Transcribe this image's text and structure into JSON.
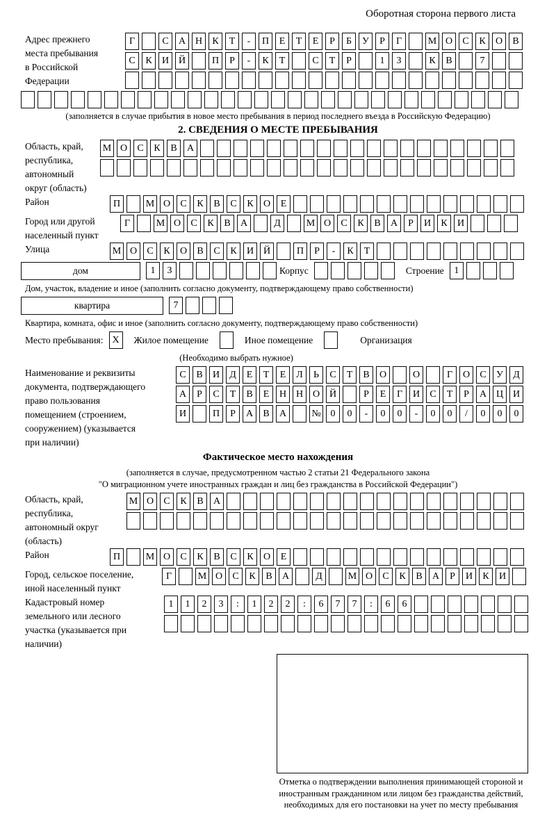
{
  "header": {
    "title": "Оборотная сторона первого листа"
  },
  "prev_address": {
    "label": "Адрес прежнего места пребывания в Российской Федерации",
    "rows": [
      {
        "chars": "Г САНКТ-ПЕТЕРБУРГ МОСКОВ",
        "len": 24
      },
      {
        "chars": "СКИЙ ПР-КТ СТР 13 КВ 7",
        "len": 24
      },
      {
        "chars": "",
        "len": 24
      },
      {
        "chars": "",
        "len": 30
      }
    ],
    "note": "(заполняется в случае прибытия в новое место пребывания в период последнего въезда в Российскую Федерацию)"
  },
  "section2": {
    "heading": "2. СВЕДЕНИЯ О МЕСТЕ ПРЕБЫВАНИЯ",
    "region": {
      "label": "Область, край, республика, автономный округ (область)",
      "rows": [
        {
          "chars": "МОСКВА",
          "len": 25
        },
        {
          "chars": "",
          "len": 25
        }
      ]
    },
    "district": {
      "label": "Район",
      "row": {
        "chars": "П МОСКВСКОЕ",
        "len": 25
      }
    },
    "city": {
      "label": "Город или другой населенный пункт",
      "row": {
        "chars": "Г МОСКВА Д МОСКВАРИКИ",
        "len": 24
      }
    },
    "street": {
      "label": "Улица",
      "row": {
        "chars": "МОСКОВСКИЙ ПР-КТ",
        "len": 25
      }
    },
    "house": {
      "box_label": "дом",
      "cells": {
        "chars": "13",
        "len": 8
      },
      "korpus_label": "Корпус",
      "korpus_cells": {
        "chars": "",
        "len": 5
      },
      "stroenie_label": "Строение",
      "stroenie_cells": {
        "chars": "1",
        "len": 4
      },
      "note": "Дом, участок, владение и иное (заполнить согласно документу, подтверждающему право собственности)"
    },
    "apartment": {
      "box_label": "квартира",
      "cells": {
        "chars": "7",
        "len": 4
      },
      "note": "Квартира, комната, офис и иное (заполнить согласно документу, подтверждающему право собственности)"
    },
    "stay_type": {
      "label": "Место пребывания:",
      "options": [
        {
          "label": "Жилое помещение",
          "box": {
            "chars": "X",
            "len": 1
          }
        },
        {
          "label": "Иное помещение",
          "box": {
            "chars": "",
            "len": 1
          }
        },
        {
          "label": "Организация",
          "box": {
            "chars": "",
            "len": 1
          }
        }
      ],
      "note": "(Необходимо выбрать нужное)"
    },
    "document": {
      "label": "Наименование и реквизиты документа, подтверждающего право пользования помещением (строением, сооружением) (указывается при наличии)",
      "rows": [
        {
          "chars": "СВИДЕТЕЛЬСТВО О ГОСУД",
          "len": 21
        },
        {
          "chars": "АРСТВЕННОЙ РЕГИСТРАЦИ",
          "len": 21
        },
        {
          "chars": "И ПРАВА №00-00-00/000",
          "len": 21
        }
      ]
    }
  },
  "actual_location": {
    "heading": "Фактическое место нахождения",
    "note_line1": "(заполняется в случае, предусмотренном частью 2 статьи 21 Федерального закона",
    "note_line2": "\"О миграционном учете иностранных граждан и лиц без гражданства в Российской Федерации\")",
    "region": {
      "label": "Область, край, республика, автономный округ (область)",
      "rows": [
        {
          "chars": "МОСКВА",
          "len": 24
        },
        {
          "chars": "",
          "len": 24
        }
      ]
    },
    "district": {
      "label": "Район",
      "row": {
        "chars": "П МОСКВСКОЕ",
        "len": 25
      }
    },
    "city": {
      "label": "Город, сельское поселение, иной населенный пункт",
      "row": {
        "chars": "Г МОСКВА Д МОСКВАРИКИ",
        "len": 22
      }
    },
    "cadastre": {
      "label": "Кадастровый номер земельного или лесного участка (указывается при наличии)",
      "rows": [
        {
          "chars": "1123:122:677:66",
          "len": 22
        },
        {
          "chars": "",
          "len": 22
        }
      ]
    }
  },
  "stamp": {
    "note": "Отметка о подтверждении выполнения принимающей стороной и иностранным гражданином или лицом без гражданства действий, необходимых для его постановки на учет по месту пребывания"
  }
}
